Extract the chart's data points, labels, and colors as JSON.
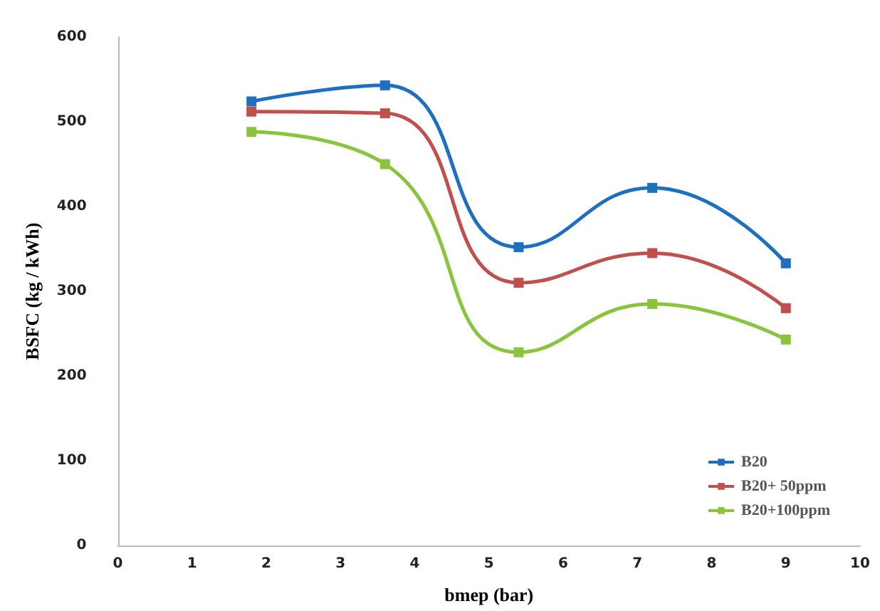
{
  "chart_data": {
    "type": "line",
    "xlabel": "bmep (bar)",
    "ylabel": "BSFC (kg / kWh)",
    "x": [
      1.8,
      3.6,
      5.4,
      7.2,
      9
    ],
    "series": [
      {
        "name": "B20",
        "color": "#1f6fc0",
        "values": [
          524,
          543,
          352,
          422,
          333
        ]
      },
      {
        "name": "B20+ 50ppm",
        "color": "#c0504d",
        "values": [
          512,
          510,
          310,
          345,
          280
        ]
      },
      {
        "name": "B20+100ppm",
        "color": "#8ac43f",
        "values": [
          488,
          450,
          228,
          285,
          243
        ]
      }
    ],
    "xlim": [
      0,
      10
    ],
    "xticks": [
      0,
      1,
      2,
      3,
      4,
      5,
      6,
      7,
      8,
      9,
      10
    ],
    "ylim": [
      0,
      600
    ],
    "yticks": [
      0,
      100,
      200,
      300,
      400,
      500,
      600
    ],
    "grid": false,
    "legend": "bottom right",
    "marker": "square",
    "line_style": "solid"
  }
}
